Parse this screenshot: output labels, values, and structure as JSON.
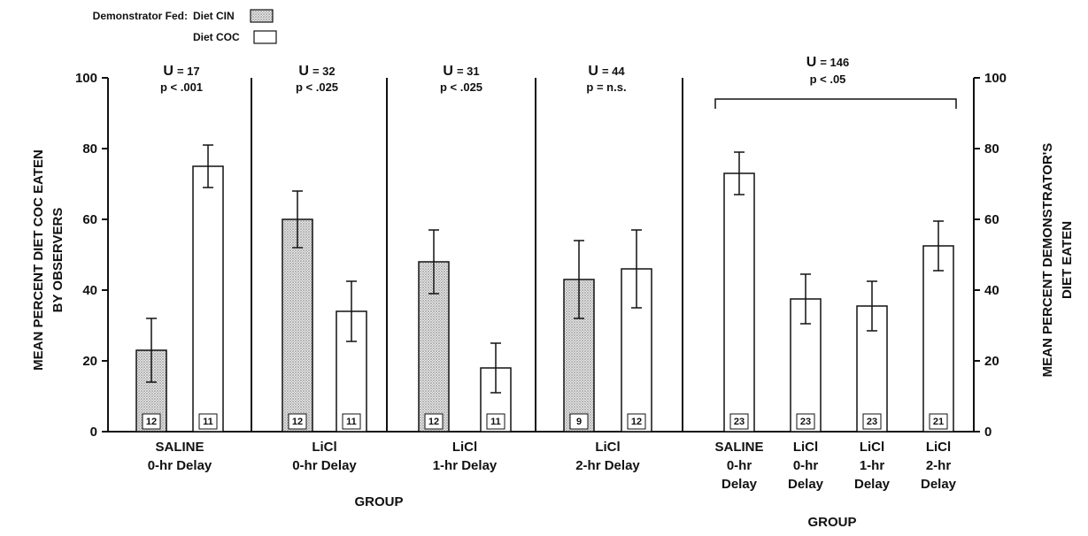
{
  "chart_data": {
    "type": "bar",
    "legend": {
      "title": "Demonstrator Fed:",
      "entries": [
        {
          "label": "Diet CIN",
          "fill": "dotted"
        },
        {
          "label": "Diet COC",
          "fill": "white"
        }
      ]
    },
    "ylabel_left": [
      "MEAN PERCENT DIET COC EATEN",
      "BY OBSERVERS"
    ],
    "ylabel_right": [
      "MEAN PERCENT DEMONSTRATOR'S",
      "DIET EATEN"
    ],
    "ylim": [
      0,
      100
    ],
    "yticks": [
      0,
      20,
      40,
      60,
      80,
      100
    ],
    "grid": false,
    "left_panel": {
      "xlabel": "GROUP",
      "groups": [
        {
          "label_lines": [
            "SALINE",
            "0-hr Delay"
          ],
          "stat_u": "17",
          "stat_p": "p < .001",
          "bars": [
            {
              "diet": "CIN",
              "value": 23,
              "err": 9,
              "n": "12"
            },
            {
              "diet": "COC",
              "value": 75,
              "err": 6,
              "n": "11"
            }
          ]
        },
        {
          "label_lines": [
            "LiCl",
            "0-hr Delay"
          ],
          "stat_u": "32",
          "stat_p": "p < .025",
          "bars": [
            {
              "diet": "CIN",
              "value": 60,
              "err": 8,
              "n": "12"
            },
            {
              "diet": "COC",
              "value": 34,
              "err": 8.5,
              "n": "11"
            }
          ]
        },
        {
          "label_lines": [
            "LiCl",
            "1-hr Delay"
          ],
          "stat_u": "31",
          "stat_p": "p < .025",
          "bars": [
            {
              "diet": "CIN",
              "value": 48,
              "err": 9,
              "n": "12"
            },
            {
              "diet": "COC",
              "value": 18,
              "err": 7,
              "n": "11"
            }
          ]
        },
        {
          "label_lines": [
            "LiCl",
            "2-hr Delay"
          ],
          "stat_u": "44",
          "stat_p": "p = n.s.",
          "bars": [
            {
              "diet": "CIN",
              "value": 43,
              "err": 11,
              "n": "9"
            },
            {
              "diet": "COC",
              "value": 46,
              "err": 11,
              "n": "12"
            }
          ]
        }
      ]
    },
    "right_panel": {
      "xlabel": "GROUP",
      "stat_u": "146",
      "stat_p": "p < .05",
      "categories": [
        {
          "label_lines": [
            "SALINE",
            "0-hr",
            "Delay"
          ],
          "value": 73,
          "err": 6,
          "n": "23"
        },
        {
          "label_lines": [
            "LiCl",
            "0-hr",
            "Delay"
          ],
          "value": 37.5,
          "err": 7,
          "n": "23"
        },
        {
          "label_lines": [
            "LiCl",
            "1-hr",
            "Delay"
          ],
          "value": 35.5,
          "err": 7,
          "n": "23"
        },
        {
          "label_lines": [
            "LiCl",
            "2-hr",
            "Delay"
          ],
          "value": 52.5,
          "err": 7,
          "n": "21"
        }
      ]
    },
    "colors": {
      "ink": "#111111",
      "bar_fill": "#ffffff",
      "stipple": "#bdbdbd"
    }
  }
}
